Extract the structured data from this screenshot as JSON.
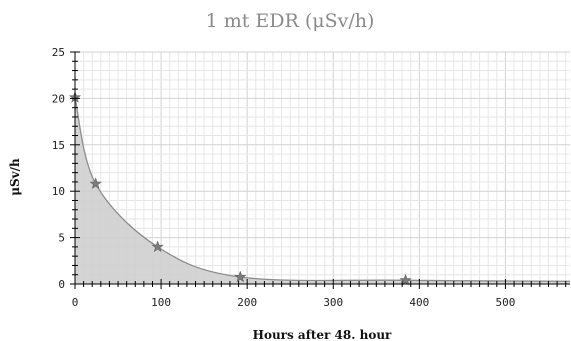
{
  "chart_data": {
    "type": "area",
    "title": "1 mt EDR (μSv/h)",
    "xlabel": "Hours after 48. hour",
    "ylabel": "μSv/h",
    "xlim": [
      0,
      575
    ],
    "ylim": [
      0,
      25
    ],
    "x_ticks": [
      "0",
      "100",
      "200",
      "300",
      "400",
      "500"
    ],
    "y_ticks": [
      "0",
      "5",
      "10",
      "15",
      "20",
      "25"
    ],
    "grid": true,
    "series": [
      {
        "points": [
          {
            "x": 0,
            "y": 20.1
          },
          {
            "x": 24,
            "y": 10.8
          },
          {
            "x": 96,
            "y": 4.0
          },
          {
            "x": 192,
            "y": 0.75
          },
          {
            "x": 384,
            "y": 0.4
          },
          {
            "x": 575,
            "y": 0.3
          }
        ],
        "marked_points": [
          {
            "x": 0,
            "y": 20.1
          },
          {
            "x": 24,
            "y": 10.8
          },
          {
            "x": 96,
            "y": 4.0
          },
          {
            "x": 192,
            "y": 0.75
          },
          {
            "x": 384,
            "y": 0.4
          }
        ]
      }
    ],
    "colors": {
      "fill": "#cfcfcf",
      "line": "#8c8c8c",
      "marker": "#7d7d7d"
    },
    "marker_icon": "star-icon"
  }
}
